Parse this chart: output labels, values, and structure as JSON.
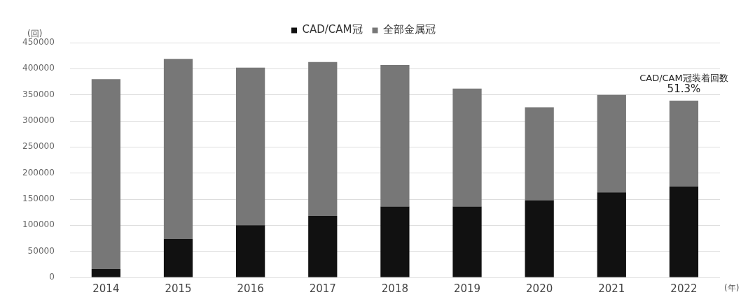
{
  "chart_data": {
    "type": "bar",
    "stacked": true,
    "ylabel": "(回)",
    "xlabel": "(年)",
    "categories": [
      "2014",
      "2015",
      "2016",
      "2017",
      "2018",
      "2019",
      "2020",
      "2021",
      "2022"
    ],
    "series": [
      {
        "name": "CAD/CAM冠",
        "color": "#111111",
        "values": [
          16000,
          74000,
          100000,
          118000,
          136000,
          136000,
          148000,
          163000,
          174000
        ]
      },
      {
        "name": "全部金属冠",
        "color": "#777777",
        "values": [
          364000,
          345000,
          302000,
          295000,
          271000,
          226000,
          178000,
          187000,
          165000
        ]
      }
    ],
    "ylim": [
      0,
      450000
    ],
    "yticks": [
      0,
      50000,
      100000,
      150000,
      200000,
      250000,
      300000,
      350000,
      400000,
      450000
    ],
    "grid": "y",
    "legend": "top",
    "annotations": [
      {
        "text": "CAD/CAM冠装着回数\n51.3%",
        "x": "2022",
        "y": 339000
      }
    ]
  }
}
